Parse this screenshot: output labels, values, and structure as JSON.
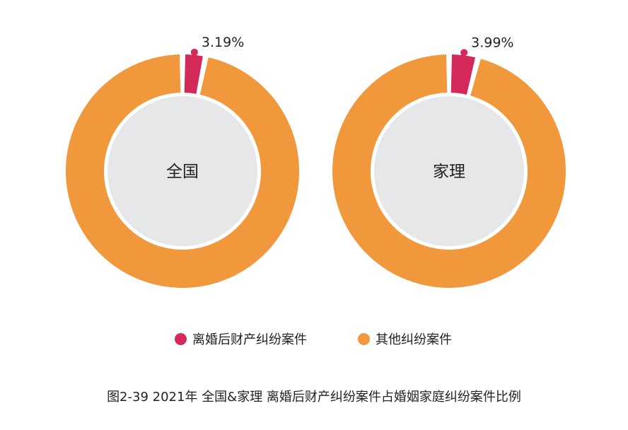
{
  "colors": {
    "highlight": "#D42A5A",
    "other": "#F2983C",
    "center_fill": "#E6E7E9",
    "text": "#222222"
  },
  "legend": [
    {
      "label": "离婚后财产纠纷案件"
    },
    {
      "label": "其他纠纷案件"
    }
  ],
  "caption": "图2-39  2021年 全国&家理 离婚后财产纠纷案件占婚姻家庭纠纷案件比例",
  "chart_data": [
    {
      "type": "pie",
      "title": "全国",
      "slices": [
        {
          "name": "离婚后财产纠纷案件",
          "value": 3.19,
          "label": "3.19%"
        },
        {
          "name": "其他纠纷案件",
          "value": 96.81
        }
      ]
    },
    {
      "type": "pie",
      "title": "家理",
      "slices": [
        {
          "name": "离婚后财产纠纷案件",
          "value": 3.99,
          "label": "3.99%"
        },
        {
          "name": "其他纠纷案件",
          "value": 96.01
        }
      ]
    }
  ]
}
